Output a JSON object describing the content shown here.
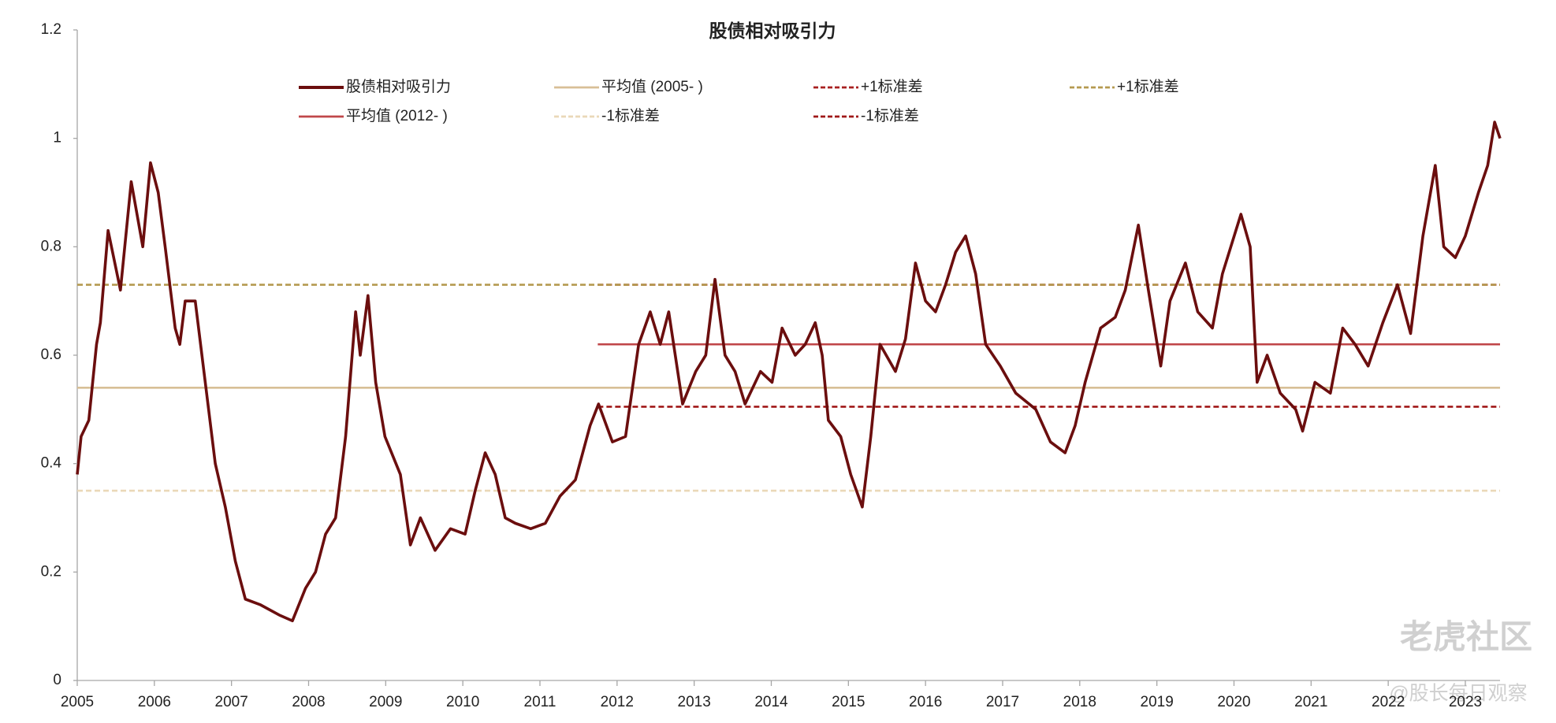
{
  "chart_data": {
    "type": "line",
    "title": "股债相对吸引力",
    "xlim": [
      2005,
      2023.45
    ],
    "xticks": [
      2005,
      2006,
      2007,
      2008,
      2009,
      2010,
      2011,
      2012,
      2013,
      2014,
      2015,
      2016,
      2017,
      2018,
      2019,
      2020,
      2021,
      2022,
      2023
    ],
    "ylim": [
      0,
      1.2
    ],
    "yticks": [
      0,
      0.2,
      0.4,
      0.6,
      0.8,
      1,
      1.2
    ],
    "grid": false,
    "legend": "top",
    "series": [
      {
        "name": "股债相对吸引力",
        "color": "#6b0e0e",
        "dashed": false,
        "x": [
          2005.0,
          2005.05,
          2005.15,
          2005.25,
          2005.3,
          2005.4,
          2005.56,
          2005.7,
          2005.85,
          2005.95,
          2006.05,
          2006.14,
          2006.27,
          2006.33,
          2006.4,
          2006.53,
          2006.66,
          2006.79,
          2006.92,
          2007.05,
          2007.18,
          2007.37,
          2007.63,
          2007.79,
          2007.96,
          2008.09,
          2008.22,
          2008.35,
          2008.48,
          2008.61,
          2008.67,
          2008.77,
          2008.87,
          2008.99,
          2009.19,
          2009.32,
          2009.45,
          2009.64,
          2009.84,
          2010.03,
          2010.16,
          2010.29,
          2010.42,
          2010.55,
          2010.68,
          2010.88,
          2011.07,
          2011.26,
          2011.46,
          2011.65,
          2011.76,
          2011.94,
          2012.11,
          2012.28,
          2012.43,
          2012.56,
          2012.67,
          2012.85,
          2013.02,
          2013.15,
          2013.27,
          2013.4,
          2013.53,
          2013.66,
          2013.86,
          2014.01,
          2014.14,
          2014.31,
          2014.44,
          2014.57,
          2014.66,
          2014.74,
          2014.9,
          2015.03,
          2015.18,
          2015.29,
          2015.41,
          2015.61,
          2015.74,
          2015.87,
          2016.0,
          2016.13,
          2016.26,
          2016.39,
          2016.52,
          2016.65,
          2016.78,
          2016.97,
          2017.17,
          2017.43,
          2017.62,
          2017.81,
          2017.94,
          2018.07,
          2018.27,
          2018.46,
          2018.59,
          2018.76,
          2018.89,
          2019.05,
          2019.17,
          2019.37,
          2019.53,
          2019.72,
          2019.85,
          2020.09,
          2020.21,
          2020.3,
          2020.43,
          2020.6,
          2020.8,
          2020.89,
          2021.05,
          2021.25,
          2021.41,
          2021.57,
          2021.74,
          2021.93,
          2022.12,
          2022.29,
          2022.45,
          2022.61,
          2022.72,
          2022.87,
          2023.0,
          2023.17,
          2023.29,
          2023.38,
          2023.45
        ],
        "values": [
          0.38,
          0.45,
          0.48,
          0.62,
          0.66,
          0.83,
          0.72,
          0.92,
          0.8,
          0.955,
          0.9,
          0.8,
          0.65,
          0.62,
          0.7,
          0.7,
          0.55,
          0.4,
          0.32,
          0.22,
          0.15,
          0.14,
          0.12,
          0.11,
          0.17,
          0.2,
          0.27,
          0.3,
          0.45,
          0.68,
          0.6,
          0.71,
          0.55,
          0.45,
          0.38,
          0.25,
          0.3,
          0.24,
          0.28,
          0.27,
          0.35,
          0.42,
          0.38,
          0.3,
          0.29,
          0.28,
          0.29,
          0.34,
          0.37,
          0.47,
          0.51,
          0.44,
          0.45,
          0.62,
          0.68,
          0.62,
          0.68,
          0.51,
          0.57,
          0.6,
          0.74,
          0.6,
          0.57,
          0.51,
          0.57,
          0.55,
          0.65,
          0.6,
          0.62,
          0.66,
          0.6,
          0.48,
          0.45,
          0.38,
          0.32,
          0.45,
          0.62,
          0.57,
          0.63,
          0.77,
          0.7,
          0.68,
          0.73,
          0.79,
          0.82,
          0.75,
          0.62,
          0.58,
          0.53,
          0.5,
          0.44,
          0.42,
          0.47,
          0.55,
          0.65,
          0.67,
          0.72,
          0.84,
          0.72,
          0.58,
          0.7,
          0.77,
          0.68,
          0.65,
          0.75,
          0.86,
          0.8,
          0.55,
          0.6,
          0.53,
          0.5,
          0.46,
          0.55,
          0.53,
          0.65,
          0.62,
          0.58,
          0.66,
          0.73,
          0.64,
          0.82,
          0.95,
          0.8,
          0.78,
          0.82,
          0.9,
          0.95,
          1.03,
          1.0
        ]
      },
      {
        "name": "平均值 (2005- )",
        "color": "#d8bf96",
        "dashed": false,
        "x": [
          2005,
          2023.45
        ],
        "values": [
          0.54,
          0.54
        ]
      },
      {
        "name": "+1标准差",
        "color": "#a82020",
        "dashed": true,
        "x": [
          2011.75,
          2023.45
        ],
        "values": [
          0.73,
          0.73
        ]
      },
      {
        "name": "+1标准差",
        "color": "#b59a50",
        "dashed": true,
        "x": [
          2005,
          2023.45
        ],
        "values": [
          0.73,
          0.73
        ]
      },
      {
        "name": "平均值 (2012- )",
        "color": "#c0474a",
        "dashed": false,
        "x": [
          2011.75,
          2023.45
        ],
        "values": [
          0.62,
          0.62
        ]
      },
      {
        "name": "-1标准差",
        "color": "#ead8b8",
        "dashed": true,
        "x": [
          2005,
          2023.45
        ],
        "values": [
          0.35,
          0.35
        ]
      },
      {
        "name": "-1标准差",
        "color": "#a01818",
        "dashed": true,
        "x": [
          2011.75,
          2023.45
        ],
        "values": [
          0.505,
          0.505
        ]
      }
    ],
    "watermark": "老虎社区",
    "source_tag": "@股长每日观察"
  }
}
